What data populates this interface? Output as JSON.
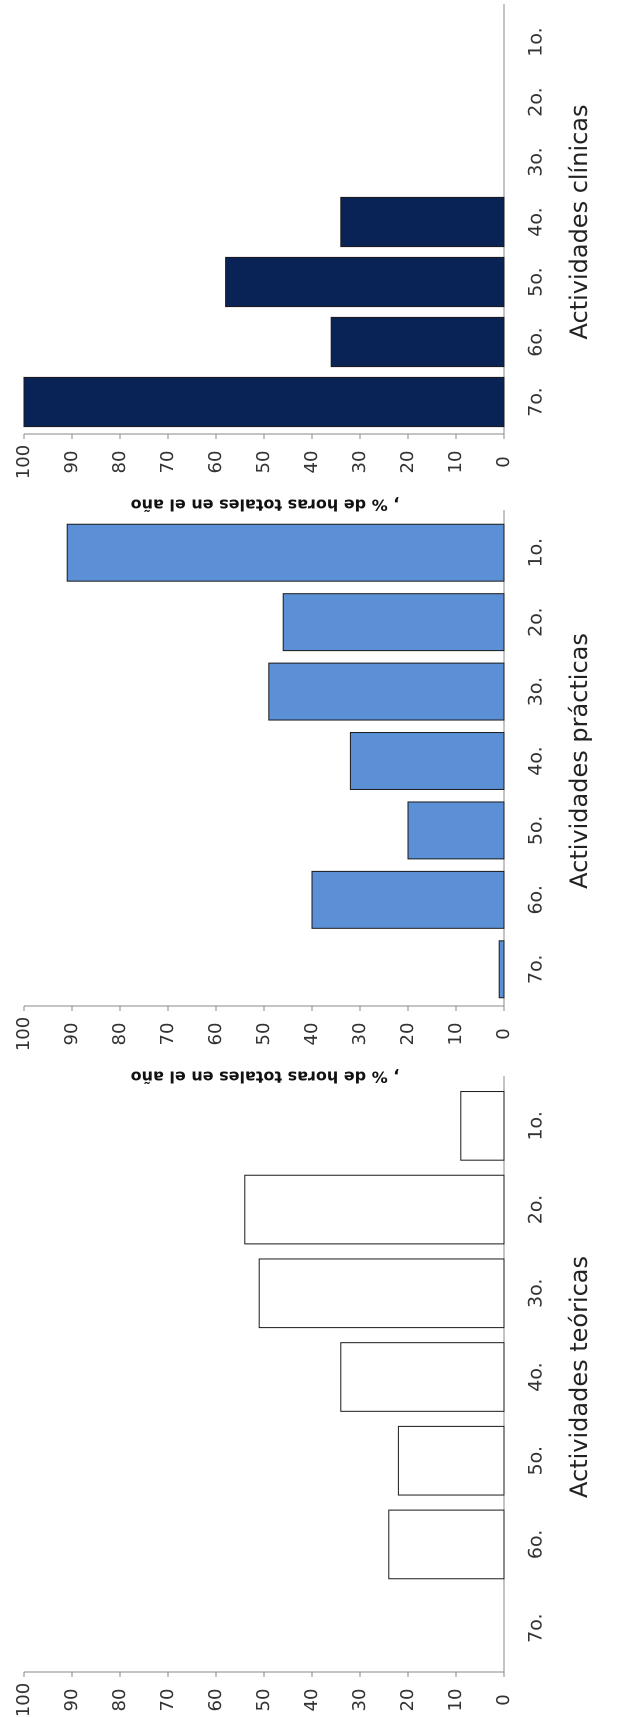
{
  "chart_data": [
    {
      "type": "bar",
      "title": "Actividades  clínicas",
      "ylabel": ", % de horas totales  en el año",
      "categories": [
        "1o.",
        "2o.",
        "3o.",
        "4o.",
        "5o.",
        "6o.",
        "7o."
      ],
      "values": [
        0,
        0,
        0,
        34,
        58,
        36,
        100
      ],
      "ylim": [
        0,
        100
      ],
      "yticks": [
        "0",
        "10",
        "20",
        "30",
        "40",
        "50",
        "60",
        "70",
        "80",
        "90",
        "100"
      ],
      "bar_color": "#0a2356",
      "grid": false
    },
    {
      "type": "bar",
      "title": "Actividades  prácticas",
      "ylabel": ", % de horas totales en el año",
      "categories": [
        "1o.",
        "2o.",
        "3o.",
        "4o.",
        "5o.",
        "6o.",
        "7o."
      ],
      "values": [
        91,
        46,
        49,
        32,
        20,
        40,
        1
      ],
      "ylim": [
        0,
        100
      ],
      "yticks": [
        "0",
        "10",
        "20",
        "30",
        "40",
        "50",
        "60",
        "70",
        "80",
        "90",
        "100"
      ],
      "bar_color": "#5b8fd6",
      "grid": false
    },
    {
      "type": "bar",
      "title": "Actividades teóricas",
      "ylabel": "% de horas totales en el año",
      "categories": [
        "1o.",
        "2o.",
        "3o.",
        "4o.",
        "5o.",
        "6o.",
        "7o."
      ],
      "values": [
        9,
        54,
        51,
        34,
        22,
        24,
        0
      ],
      "ylim": [
        0,
        100
      ],
      "yticks": [
        "0",
        "10",
        "20",
        "30",
        "40",
        "50",
        "60",
        "70",
        "80",
        "90",
        "100"
      ],
      "bar_color": "#ffffff",
      "grid": false
    }
  ]
}
